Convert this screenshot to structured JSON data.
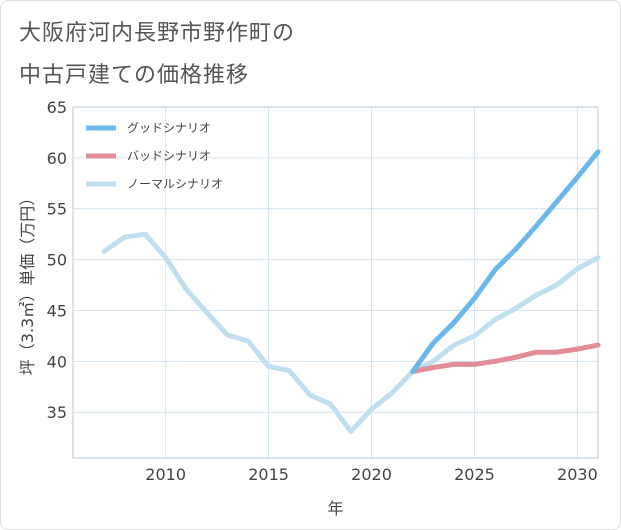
{
  "title_line1": "大阪府河内長野市野作町の",
  "title_line2": "中古戸建ての価格推移",
  "chart_data": {
    "type": "line",
    "title": "大阪府河内長野市野作町の中古戸建ての価格推移",
    "xlabel": "年",
    "ylabel": "坪（3.3㎡）単価（万円）",
    "xlim": [
      2005.5,
      2031
    ],
    "ylim": [
      30.5,
      65
    ],
    "xticks": [
      2010,
      2015,
      2020,
      2025,
      2030
    ],
    "yticks": [
      35,
      40,
      45,
      50,
      55,
      60,
      65
    ],
    "grid": true,
    "legend_position": "top-left",
    "series": [
      {
        "name": "グッドシナリオ",
        "color": "#6cb8ea",
        "x": [
          2022,
          2023,
          2024,
          2025,
          2026,
          2027,
          2028,
          2029,
          2030,
          2031
        ],
        "values": [
          39.0,
          41.8,
          43.8,
          46.2,
          49.0,
          51.0,
          53.3,
          55.7,
          58.1,
          60.6
        ]
      },
      {
        "name": "バッドシナリオ",
        "color": "#e38d98",
        "x": [
          2022,
          2023,
          2024,
          2025,
          2026,
          2027,
          2028,
          2029,
          2030,
          2031
        ],
        "values": [
          39.0,
          39.4,
          39.7,
          39.7,
          40.0,
          40.4,
          40.9,
          40.9,
          41.2,
          41.6
        ]
      },
      {
        "name": "ノーマルシナリオ",
        "color": "#c0e0f0",
        "x": [
          2007,
          2008,
          2009,
          2010,
          2011,
          2012,
          2013,
          2014,
          2015,
          2016,
          2017,
          2018,
          2019,
          2020,
          2021,
          2022,
          2023,
          2024,
          2025,
          2026,
          2027,
          2028,
          2029,
          2030,
          2031
        ],
        "values": [
          50.8,
          52.2,
          52.5,
          50.2,
          47.1,
          44.8,
          42.6,
          42.0,
          39.5,
          39.1,
          36.7,
          35.8,
          33.1,
          35.3,
          36.9,
          39.0,
          40.0,
          41.6,
          42.5,
          44.1,
          45.2,
          46.5,
          47.5,
          49.1,
          50.2
        ]
      }
    ]
  }
}
